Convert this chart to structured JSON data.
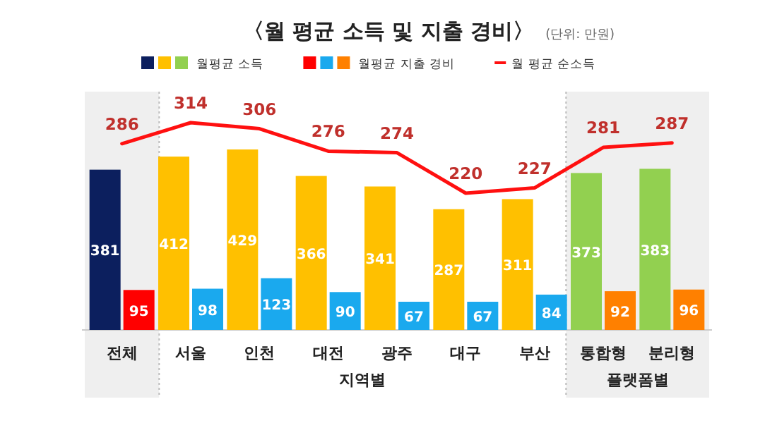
{
  "chart_data": {
    "type": "bar",
    "title": "〈월 평균 소득 및 지출 경비〉",
    "subtitle": "(단위: 만원)",
    "categories": [
      "전체",
      "서울",
      "인천",
      "대전",
      "광주",
      "대구",
      "부산",
      "통합형",
      "분리형"
    ],
    "series": [
      {
        "name": "월평균 소득",
        "colors": [
          "#0c1f5e",
          "#ffc000",
          "#ffc000",
          "#ffc000",
          "#ffc000",
          "#ffc000",
          "#ffc000",
          "#92d050",
          "#92d050"
        ],
        "values": [
          381,
          412,
          429,
          366,
          341,
          287,
          311,
          373,
          383
        ]
      },
      {
        "name": "월평균 지출 경비",
        "colors": [
          "#ff0000",
          "#1aa9ee",
          "#1aa9ee",
          "#1aa9ee",
          "#1aa9ee",
          "#1aa9ee",
          "#1aa9ee",
          "#ff8000",
          "#ff8000"
        ],
        "values": [
          95,
          98,
          123,
          90,
          67,
          67,
          84,
          92,
          96
        ]
      },
      {
        "name": "월 평균 순소득",
        "type": "line",
        "axis": "y2",
        "color": "#ff1010",
        "values": [
          286,
          314,
          306,
          276,
          274,
          220,
          227,
          281,
          287
        ]
      }
    ],
    "bands": [
      {
        "axis": "x",
        "from": "전체",
        "to": "전체",
        "color": "#efefef"
      },
      {
        "axis": "x",
        "from": "통합형",
        "to": "분리형",
        "label": "플랫폼별",
        "color": "#efefef"
      }
    ],
    "annotations": [
      "지역별"
    ],
    "data_labels": true,
    "legend": "top left",
    "tick_labels": "x",
    "grid": false,
    "marker": "none"
  }
}
